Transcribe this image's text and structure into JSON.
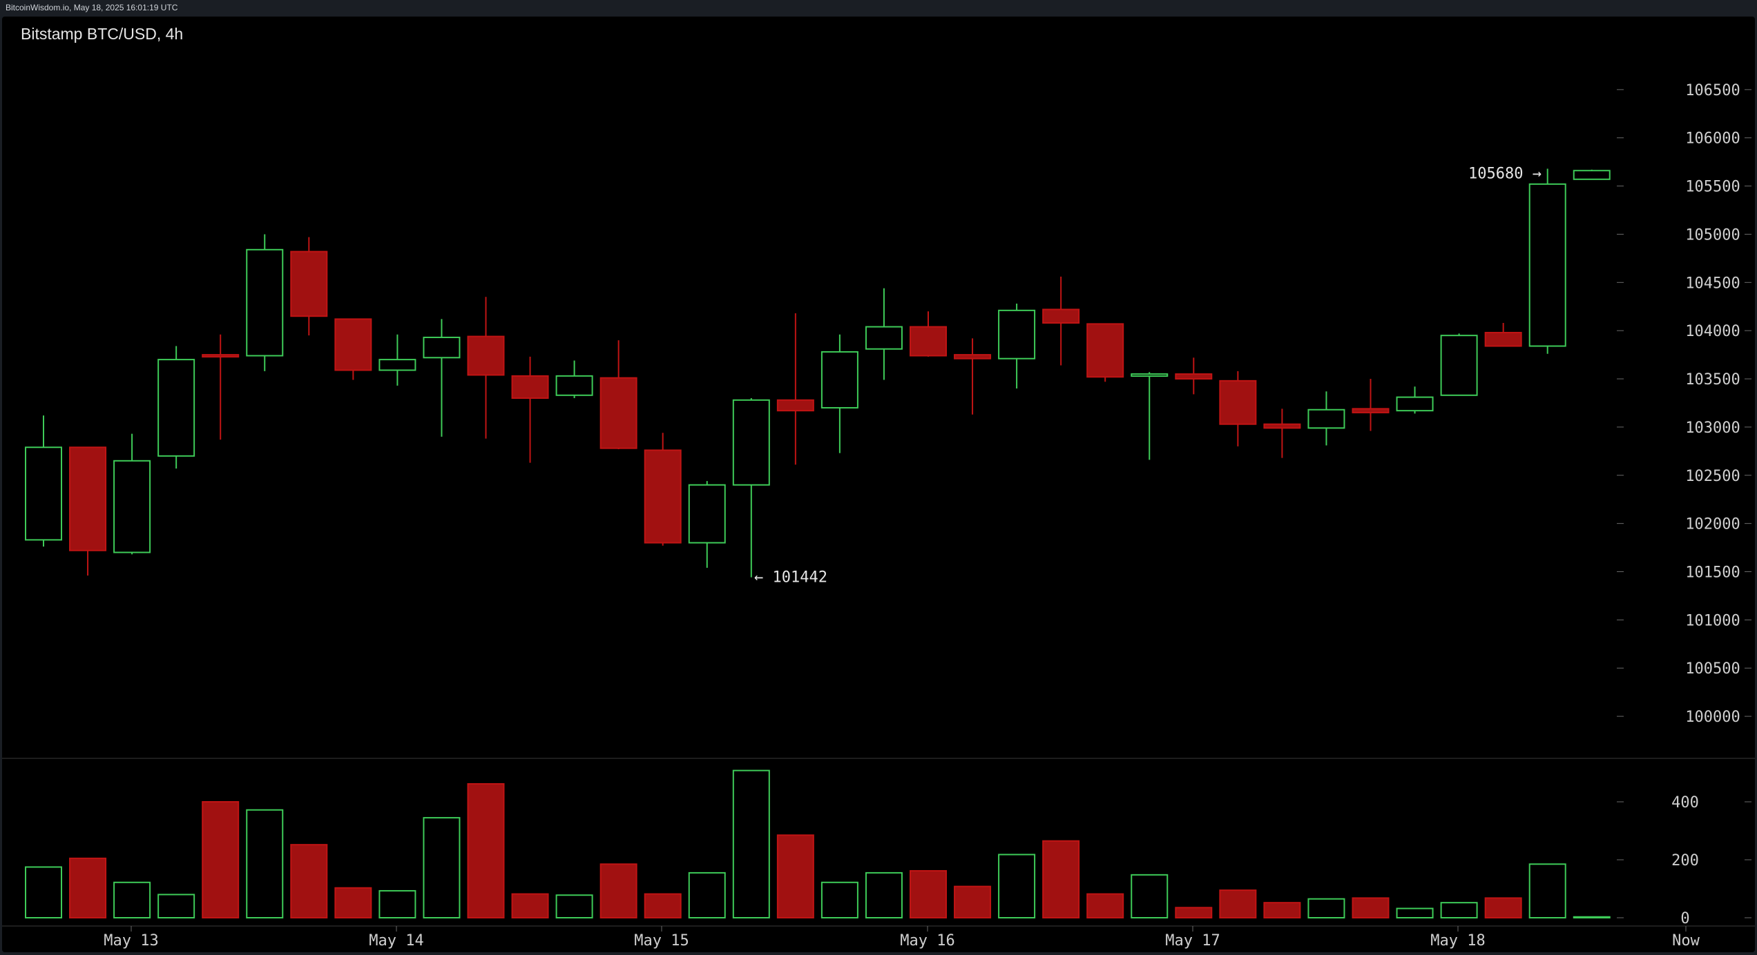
{
  "header": {
    "source_text": "BitcoinWisdom.io, May 18, 2025 16:01:19 UTC"
  },
  "chart_title": "Bitstamp BTC/USD, 4h",
  "colors": {
    "up": "#3ecb58",
    "down": "#c01414",
    "down_fill": "#a11111",
    "axis_text": "#cfcfcf",
    "bg": "#000000"
  },
  "annotations": {
    "high_label": "105680 →",
    "low_label": "← 101442"
  },
  "chart_data": {
    "type": "candlestick",
    "title": "Bitstamp BTC/USD, 4h",
    "price_axis": {
      "ticks": [
        100000,
        100500,
        101000,
        101500,
        102000,
        102500,
        103000,
        103500,
        104000,
        104500,
        105000,
        105500,
        106000,
        106500
      ],
      "range": [
        99700,
        107000
      ]
    },
    "volume_axis": {
      "ticks": [
        0,
        200,
        400
      ],
      "range": [
        0,
        520
      ]
    },
    "x_labels": [
      "May 13",
      "May 14",
      "May 15",
      "May 16",
      "May 17",
      "May 18",
      "Now"
    ],
    "candles": [
      {
        "o": 101830,
        "h": 103120,
        "l": 101760,
        "c": 102790,
        "v": 175
      },
      {
        "o": 102790,
        "h": 102790,
        "l": 101460,
        "c": 101720,
        "v": 205
      },
      {
        "o": 101700,
        "h": 102930,
        "l": 101680,
        "c": 102650,
        "v": 122
      },
      {
        "o": 102700,
        "h": 103840,
        "l": 102570,
        "c": 103700,
        "v": 80
      },
      {
        "o": 103750,
        "h": 103960,
        "l": 102870,
        "c": 103730,
        "v": 400
      },
      {
        "o": 103740,
        "h": 105000,
        "l": 103580,
        "c": 104840,
        "v": 372
      },
      {
        "o": 104820,
        "h": 104970,
        "l": 103950,
        "c": 104150,
        "v": 252
      },
      {
        "o": 104120,
        "h": 104120,
        "l": 103490,
        "c": 103590,
        "v": 103
      },
      {
        "o": 103590,
        "h": 103960,
        "l": 103430,
        "c": 103700,
        "v": 93
      },
      {
        "o": 103720,
        "h": 104120,
        "l": 102900,
        "c": 103930,
        "v": 345
      },
      {
        "o": 103940,
        "h": 104350,
        "l": 102880,
        "c": 103540,
        "v": 462
      },
      {
        "o": 103530,
        "h": 103730,
        "l": 102630,
        "c": 103300,
        "v": 82
      },
      {
        "o": 103330,
        "h": 103690,
        "l": 103300,
        "c": 103530,
        "v": 78
      },
      {
        "o": 103510,
        "h": 103900,
        "l": 102770,
        "c": 102780,
        "v": 185
      },
      {
        "o": 102760,
        "h": 102940,
        "l": 101770,
        "c": 101800,
        "v": 82
      },
      {
        "o": 101800,
        "h": 102440,
        "l": 101540,
        "c": 102400,
        "v": 155
      },
      {
        "o": 102400,
        "h": 103300,
        "l": 101442,
        "c": 103280,
        "v": 508
      },
      {
        "o": 103280,
        "h": 104180,
        "l": 102610,
        "c": 103170,
        "v": 285
      },
      {
        "o": 103200,
        "h": 103960,
        "l": 102730,
        "c": 103780,
        "v": 122
      },
      {
        "o": 103810,
        "h": 104440,
        "l": 103490,
        "c": 104040,
        "v": 155
      },
      {
        "o": 104040,
        "h": 104200,
        "l": 103730,
        "c": 103740,
        "v": 162
      },
      {
        "o": 103750,
        "h": 103920,
        "l": 103130,
        "c": 103710,
        "v": 108
      },
      {
        "o": 103710,
        "h": 104280,
        "l": 103400,
        "c": 104210,
        "v": 218
      },
      {
        "o": 104220,
        "h": 104560,
        "l": 103640,
        "c": 104080,
        "v": 265
      },
      {
        "o": 104070,
        "h": 104070,
        "l": 103470,
        "c": 103520,
        "v": 82
      },
      {
        "o": 103530,
        "h": 103570,
        "l": 102660,
        "c": 103550,
        "v": 148
      },
      {
        "o": 103550,
        "h": 103720,
        "l": 103340,
        "c": 103500,
        "v": 35
      },
      {
        "o": 103480,
        "h": 103580,
        "l": 102800,
        "c": 103030,
        "v": 95
      },
      {
        "o": 103030,
        "h": 103190,
        "l": 102680,
        "c": 102990,
        "v": 52
      },
      {
        "o": 102990,
        "h": 103370,
        "l": 102810,
        "c": 103180,
        "v": 65
      },
      {
        "o": 103190,
        "h": 103500,
        "l": 102960,
        "c": 103150,
        "v": 68
      },
      {
        "o": 103170,
        "h": 103420,
        "l": 103140,
        "c": 103310,
        "v": 32
      },
      {
        "o": 103330,
        "h": 103970,
        "l": 103330,
        "c": 103950,
        "v": 52
      },
      {
        "o": 103980,
        "h": 104080,
        "l": 103840,
        "c": 103840,
        "v": 68
      },
      {
        "o": 103840,
        "h": 105680,
        "l": 103760,
        "c": 105520,
        "v": 185
      },
      {
        "o": 105570,
        "h": 105670,
        "l": 105570,
        "c": 105660,
        "v": 3
      }
    ]
  }
}
